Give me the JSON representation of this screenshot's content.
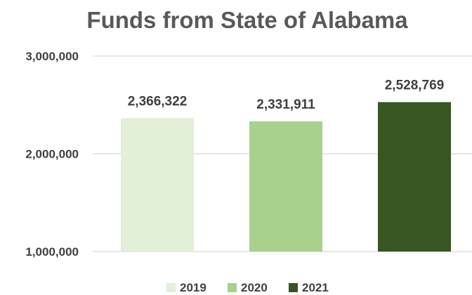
{
  "chart_data": {
    "type": "bar",
    "title": "Funds from State of Alabama",
    "xlabel": "",
    "ylabel": "",
    "ylim": [
      1000000,
      3000000
    ],
    "yticks": [
      "1,000,000",
      "2,000,000",
      "3,000,000"
    ],
    "grid": true,
    "legend_position": "bottom",
    "series": [
      {
        "name": "2019",
        "values": [
          2366322
        ],
        "label": "2,366,322",
        "color": "#e2efd9"
      },
      {
        "name": "2020",
        "values": [
          2331911
        ],
        "label": "2,331,911",
        "color": "#a9d18e"
      },
      {
        "name": "2021",
        "values": [
          2528769
        ],
        "label": "2,528,769",
        "color": "#375623"
      }
    ]
  }
}
